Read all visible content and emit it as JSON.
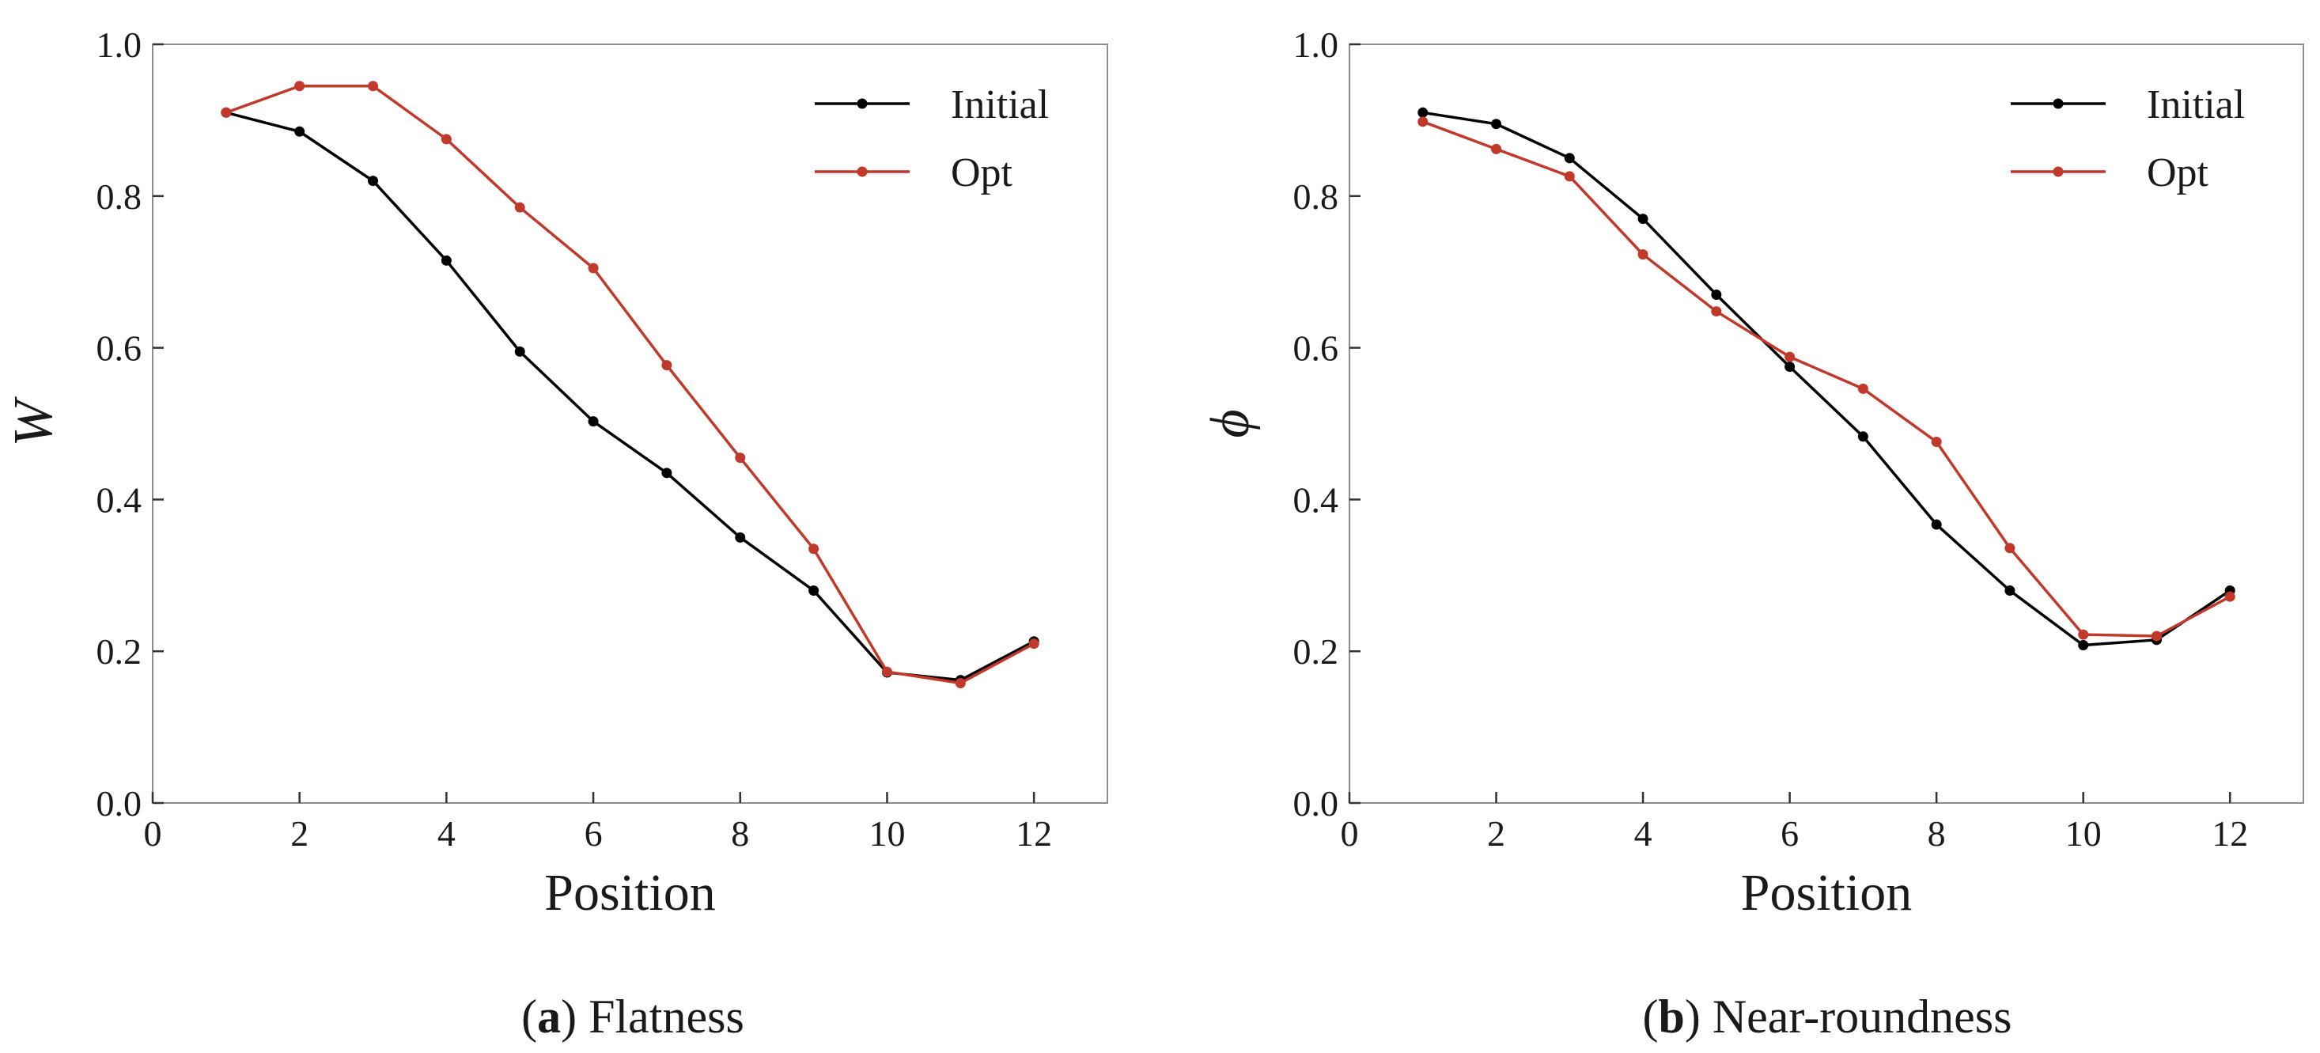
{
  "chart_data": [
    {
      "type": "line",
      "panel_letter": "a",
      "caption": "Flatness",
      "xlabel": "Position",
      "ylabel": "W",
      "xlim": [
        0,
        13
      ],
      "ylim": [
        0.0,
        1.0
      ],
      "xticks": [
        "0",
        "2",
        "4",
        "6",
        "8",
        "10",
        "12"
      ],
      "yticks": [
        "0.0",
        "0.2",
        "0.4",
        "0.6",
        "0.8",
        "1.0"
      ],
      "legend_position": "top-right",
      "grid": false,
      "x": [
        1,
        2,
        3,
        4,
        5,
        6,
        7,
        8,
        9,
        10,
        11,
        12
      ],
      "series": [
        {
          "name": "Initial",
          "color": "#000000",
          "values": [
            0.91,
            0.885,
            0.82,
            0.715,
            0.595,
            0.503,
            0.435,
            0.35,
            0.28,
            0.172,
            0.162,
            0.213
          ]
        },
        {
          "name": "Opt",
          "color": "#c0392b",
          "values": [
            0.91,
            0.945,
            0.945,
            0.875,
            0.785,
            0.705,
            0.577,
            0.455,
            0.335,
            0.173,
            0.158,
            0.21
          ]
        }
      ]
    },
    {
      "type": "line",
      "panel_letter": "b",
      "caption": "Near-roundness",
      "xlabel": "Position",
      "ylabel": "ϕ",
      "xlim": [
        0,
        13
      ],
      "ylim": [
        0.0,
        1.0
      ],
      "xticks": [
        "0",
        "2",
        "4",
        "6",
        "8",
        "10",
        "12"
      ],
      "yticks": [
        "0.0",
        "0.2",
        "0.4",
        "0.6",
        "0.8",
        "1.0"
      ],
      "legend_position": "top-right",
      "grid": false,
      "x": [
        1,
        2,
        3,
        4,
        5,
        6,
        7,
        8,
        9,
        10,
        11,
        12
      ],
      "series": [
        {
          "name": "Initial",
          "color": "#000000",
          "values": [
            0.91,
            0.895,
            0.85,
            0.77,
            0.67,
            0.575,
            0.483,
            0.367,
            0.28,
            0.208,
            0.215,
            0.28
          ]
        },
        {
          "name": "Opt",
          "color": "#c0392b",
          "values": [
            0.898,
            0.862,
            0.826,
            0.723,
            0.648,
            0.588,
            0.546,
            0.476,
            0.336,
            0.222,
            0.22,
            0.272
          ]
        }
      ]
    }
  ]
}
